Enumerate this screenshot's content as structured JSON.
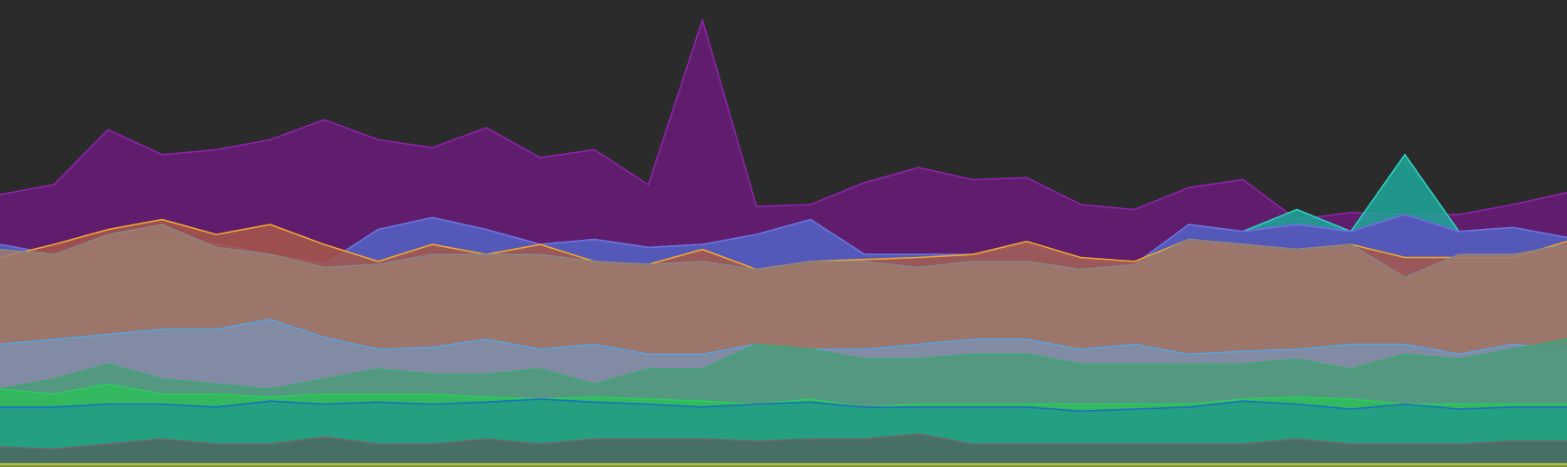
{
  "chart_data": {
    "type": "area",
    "background": "#2b2b2b",
    "x": [
      0,
      1,
      2,
      3,
      4,
      5,
      6,
      7,
      8,
      9,
      10,
      11,
      12,
      13,
      14,
      15,
      16,
      17,
      18,
      19,
      20,
      21,
      22,
      23,
      24,
      25,
      26,
      27,
      28,
      29
    ],
    "xlim": [
      0,
      29
    ],
    "ylim": [
      0,
      468
    ],
    "series": [
      {
        "color": "#8e24aa",
        "fill": "#6a1b7a",
        "values": [
          273,
          283,
          338,
          313,
          318,
          328,
          348,
          328,
          320,
          340,
          310,
          318,
          283,
          448,
          261,
          263,
          285,
          300,
          288,
          290,
          263,
          258,
          280,
          288,
          248,
          255,
          253,
          253,
          263,
          275
        ]
      },
      {
        "color": "#2ed3c0",
        "fill": "#1fa89a",
        "values": [
          223,
          213,
          223,
          228,
          223,
          213,
          203,
          238,
          250,
          238,
          223,
          228,
          220,
          223,
          233,
          248,
          213,
          213,
          213,
          223,
          208,
          203,
          243,
          236,
          258,
          236,
          313,
          236,
          240,
          230
        ]
      },
      {
        "color": "#6f6fe0",
        "fill": "#5c4fbf",
        "values": [
          223,
          213,
          223,
          228,
          223,
          213,
          203,
          238,
          250,
          238,
          223,
          228,
          220,
          223,
          233,
          248,
          213,
          213,
          213,
          223,
          208,
          203,
          243,
          236,
          243,
          236,
          253,
          236,
          240,
          230
        ]
      },
      {
        "color": "#f0a830",
        "fill": "#a8584a",
        "values": [
          210,
          223,
          238,
          248,
          233,
          243,
          223,
          206,
          223,
          213,
          223,
          206,
          203,
          218,
          198,
          206,
          208,
          210,
          213,
          226,
          210,
          206,
          228,
          223,
          218,
          223,
          210,
          210,
          210,
          226
        ]
      },
      {
        "color": "#8a8480",
        "fill": "#9c7a6e",
        "values": [
          218,
          213,
          233,
          243,
          220,
          213,
          200,
          203,
          213,
          213,
          213,
          206,
          203,
          206,
          198,
          206,
          206,
          200,
          206,
          206,
          198,
          203,
          228,
          223,
          218,
          223,
          190,
          213,
          213,
          223
        ]
      },
      {
        "color": "#5fa0d8",
        "fill": "#7d8fae",
        "values": [
          123,
          128,
          133,
          138,
          138,
          148,
          130,
          118,
          120,
          128,
          118,
          123,
          113,
          113,
          123,
          118,
          118,
          123,
          128,
          128,
          118,
          123,
          113,
          116,
          118,
          123,
          123,
          113,
          123,
          118
        ]
      },
      {
        "color": "#3aa870",
        "fill": "#4e9a7c",
        "values": [
          78,
          88,
          103,
          88,
          83,
          78,
          88,
          98,
          93,
          93,
          98,
          83,
          98,
          98,
          123,
          118,
          108,
          108,
          113,
          113,
          103,
          103,
          103,
          103,
          108,
          98,
          113,
          108,
          118,
          128
        ]
      },
      {
        "color": "#2ecc5a",
        "fill": "#2ebd5a",
        "values": [
          78,
          73,
          83,
          73,
          73,
          70,
          73,
          73,
          73,
          70,
          68,
          70,
          68,
          66,
          63,
          68,
          60,
          63,
          63,
          63,
          63,
          63,
          63,
          68,
          70,
          68,
          63,
          63,
          63,
          63
        ]
      },
      {
        "color": "#1a6fc0",
        "fill": "#229a88",
        "values": [
          60,
          60,
          63,
          63,
          60,
          66,
          63,
          65,
          63,
          65,
          68,
          65,
          63,
          60,
          63,
          65,
          60,
          60,
          60,
          60,
          56,
          58,
          60,
          66,
          63,
          58,
          63,
          58,
          60,
          60
        ]
      },
      {
        "color": "#6a6a6a",
        "fill": "#4e6660",
        "values": [
          20,
          18,
          23,
          28,
          23,
          23,
          30,
          23,
          23,
          28,
          23,
          28,
          28,
          28,
          26,
          28,
          28,
          33,
          23,
          23,
          23,
          23,
          23,
          23,
          28,
          23,
          23,
          23,
          26,
          26
        ]
      },
      {
        "color": "#c8d43a",
        "fill": "#8a9a3a",
        "values": [
          3,
          3,
          3,
          3,
          3,
          3,
          3,
          3,
          3,
          3,
          3,
          3,
          3,
          3,
          3,
          3,
          3,
          3,
          3,
          3,
          3,
          3,
          3,
          3,
          3,
          3,
          3,
          3,
          3,
          3
        ]
      }
    ]
  }
}
